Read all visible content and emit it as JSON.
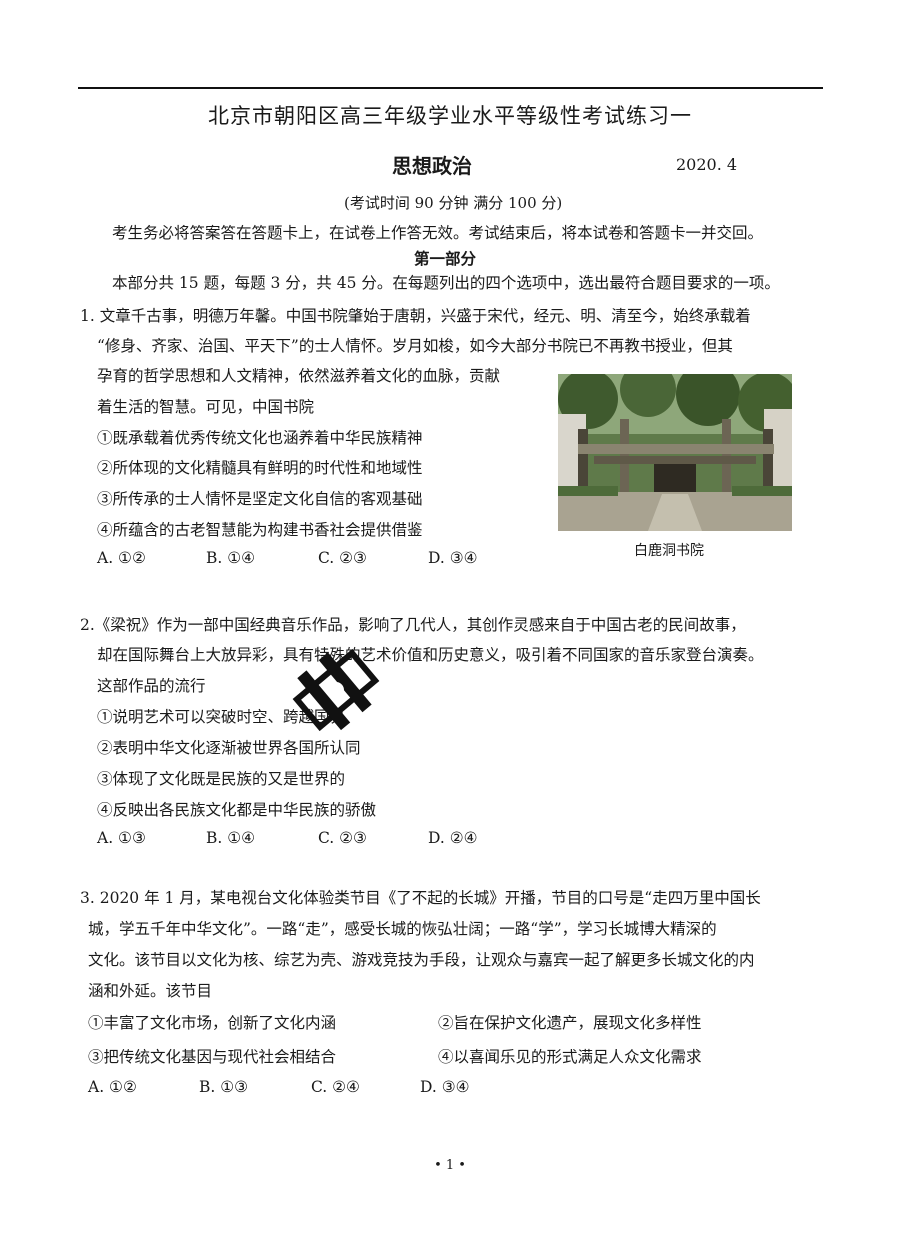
{
  "header": {
    "title": "北京市朝阳区高三年级学业水平等级性考试练习一",
    "subject": "思想政治",
    "date": "2020. 4",
    "time_info": "(考试时间 90 分钟   满分 100 分)",
    "notice": "考生务必将答案答在答题卡上，在试卷上作答无效。考试结束后，将本试卷和答题卡一并交回。"
  },
  "part1": {
    "heading": "第一部分",
    "intro": "本部分共 15 题，每题 3 分，共 45 分。在每题列出的四个选项中，选出最符合题目要求的一项。"
  },
  "q1": {
    "lines": [
      "1. 文章千古事，明德万年馨。中国书院肇始于唐朝，兴盛于宋代，经元、明、清至今，始终承载着",
      "“修身、齐家、治国、平天下”的士人情怀。岁月如梭，如今大部分书院已不再教书授业，但其",
      "孕育的哲学思想和人文精神，依然滋养着文化的血脉，贡献",
      "着生活的智慧。可见，中国书院"
    ],
    "statements": [
      "①既承载着优秀传统文化也涵养着中华民族精神",
      "②所体现的文化精髓具有鲜明的时代性和地域性",
      "③所传承的士人情怀是坚定文化自信的客观基础",
      "④所蕴含的古老智慧能为构建书香社会提供借鉴"
    ],
    "options": [
      "A. ①②",
      "B. ①④",
      "C. ②③",
      "D. ③④"
    ],
    "image_caption": "白鹿洞书院"
  },
  "q2": {
    "lines": [
      "2.《梁祝》作为一部中国经典音乐作品，影响了几代人，其创作灵感来自于中国古老的民间故事，",
      "却在国际舞台上大放异彩，具有特殊的艺术价值和历史意义，吸引着不同国家的音乐家登台演奏。",
      "这部作品的流行"
    ],
    "statements": [
      "①说明艺术可以突破时空、跨越国界",
      "②表明中华文化逐渐被世界各国所认同",
      "③体现了文化既是民族的又是世界的",
      "④反映出各民族文化都是中华民族的骄傲"
    ],
    "options": [
      "A. ①③",
      "B. ①④",
      "C. ②③",
      "D. ②④"
    ]
  },
  "q3": {
    "lines": [
      "3. 2020 年 1 月，某电视台文化体验类节目《了不起的长城》开播，节目的口号是“走四万里中国长",
      "城，学五千年中华文化”。一路“走”，感受长城的恢弘壮阔；一路“学”，学习长城博大精深的",
      "文化。该节目以文化为核、综艺为壳、游戏竞技为手段，让观众与嘉宾一起了解更多长城文化的内",
      "涵和外延。该节目"
    ],
    "statements": [
      "①丰富了文化市场，创新了文化内涵",
      "②旨在保护文化遗产，展现文化多样性",
      "③把传统文化基因与现代社会相结合",
      "④以喜闻乐见的形式满足人众文化需求"
    ],
    "options": [
      "A. ①②",
      "B. ①③",
      "C. ②④",
      "D. ③④"
    ]
  },
  "footer": {
    "page": "• 1 •"
  }
}
